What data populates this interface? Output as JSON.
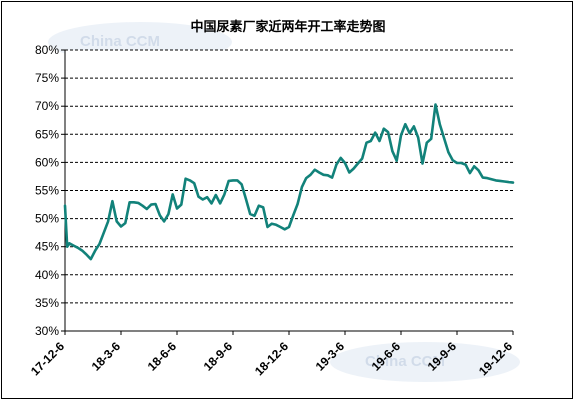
{
  "chart_data": {
    "type": "line",
    "title": "中国尿素厂家近两年开工率走势图",
    "xlabel": "",
    "ylabel": "",
    "ylim": [
      30,
      80
    ],
    "y_ticks": [
      "30%",
      "35%",
      "40%",
      "45%",
      "50%",
      "55%",
      "60%",
      "65%",
      "70%",
      "75%",
      "80%"
    ],
    "x_ticks": [
      "17-12-6",
      "18-3-6",
      "18-6-6",
      "18-9-6",
      "18-12-6",
      "19-3-6",
      "19-6-6",
      "19-9-6",
      "19-12-6"
    ],
    "x_range": [
      0,
      104
    ],
    "grid": true,
    "line_color": "#12827a",
    "series": [
      {
        "x": [
          0,
          0.5,
          1,
          2,
          3,
          4,
          5,
          6,
          7,
          8,
          9,
          10,
          11,
          12,
          13,
          14,
          15,
          16,
          17,
          18,
          19,
          20,
          21,
          22,
          23,
          24,
          25,
          26,
          27,
          28,
          29,
          30,
          31,
          32,
          33,
          34,
          35,
          36,
          37,
          38,
          39,
          40,
          41,
          42,
          43,
          44,
          45,
          46,
          47,
          48,
          49,
          50,
          51,
          52,
          53,
          54,
          55,
          56,
          57,
          58,
          59,
          60,
          61,
          62,
          63,
          64,
          65,
          66,
          67,
          68,
          69,
          70,
          71,
          72,
          73,
          74,
          75,
          76,
          77,
          78,
          79,
          80,
          81,
          82,
          83,
          84,
          85,
          86,
          87,
          88,
          89,
          90,
          91,
          92,
          93,
          94,
          95,
          96,
          97,
          98,
          99,
          100,
          101,
          102,
          103,
          104
        ],
        "values": [
          52.3,
          45.0,
          45.6,
          45.2,
          44.8,
          44.3,
          43.6,
          42.8,
          44.3,
          45.5,
          47.5,
          49.5,
          53.1,
          49.5,
          48.6,
          49.2,
          52.9,
          52.9,
          52.8,
          52.3,
          51.7,
          52.5,
          52.6,
          50.6,
          49.5,
          50.8,
          54.3,
          51.8,
          52.5,
          57.1,
          56.8,
          56.3,
          53.9,
          53.4,
          53.8,
          52.7,
          54.2,
          52.7,
          54.3,
          56.7,
          56.8,
          56.8,
          56.1,
          53.5,
          50.8,
          50.5,
          52.3,
          52.0,
          48.5,
          49.1,
          48.9,
          48.5,
          48.1,
          48.5,
          50.6,
          52.6,
          55.6,
          57.2,
          57.8,
          58.7,
          58.2,
          57.8,
          57.7,
          57.3,
          59.6,
          60.8,
          59.9,
          58.2,
          58.9,
          59.8,
          60.7,
          63.5,
          63.8,
          65.3,
          63.8,
          66.0,
          65.4,
          62.0,
          60.3,
          64.8,
          66.8,
          65.2,
          66.4,
          64.4,
          59.8,
          63.5,
          64.2,
          70.3,
          66.8,
          64.3,
          61.8,
          60.4,
          59.9,
          59.9,
          59.6,
          58.1,
          59.3,
          58.6,
          57.3,
          57.2,
          57.0,
          56.8,
          56.7,
          56.6,
          56.5,
          56.4
        ]
      }
    ]
  }
}
